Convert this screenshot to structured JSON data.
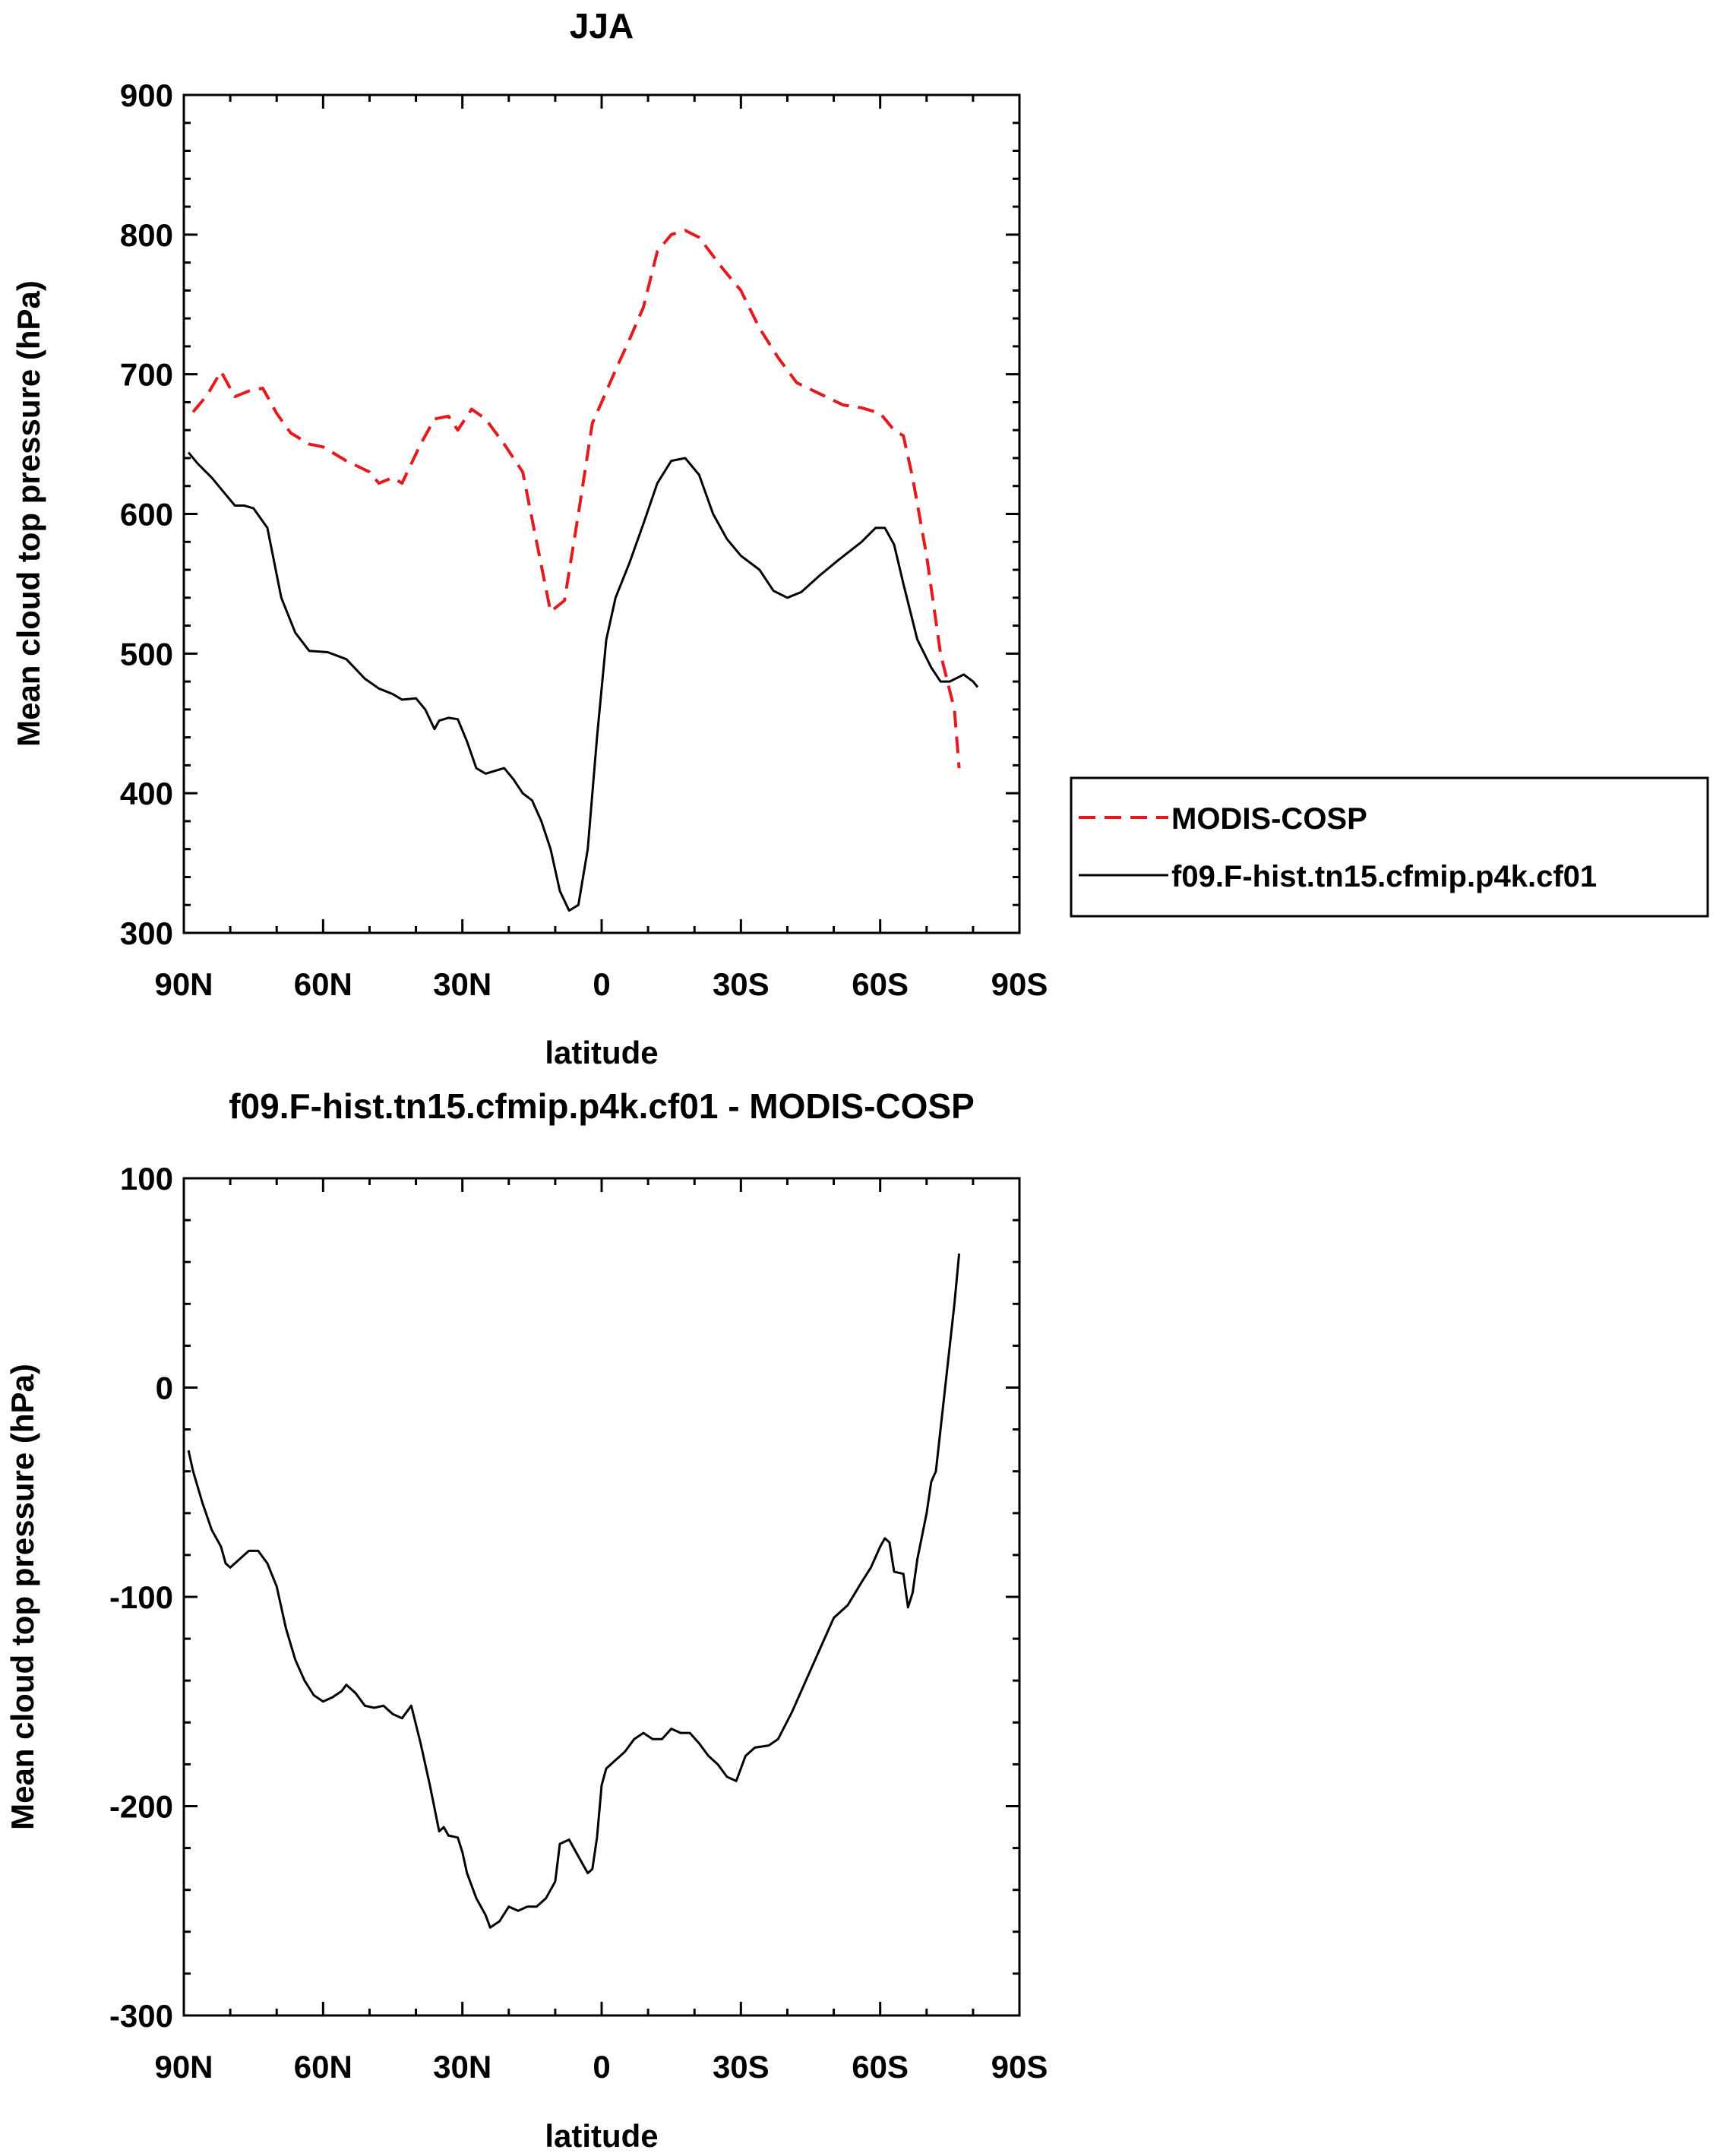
{
  "chart_data": [
    {
      "type": "line",
      "title": "JJA",
      "xlabel": "latitude",
      "ylabel": "Mean cloud top pressure (hPa)",
      "xlim": [
        -90,
        90
      ],
      "ylim": [
        300,
        900
      ],
      "xticks": [
        -90,
        -60,
        -30,
        0,
        30,
        60,
        90
      ],
      "xtick_labels": [
        "90N",
        "60N",
        "30N",
        "0",
        "30S",
        "60S",
        "90S"
      ],
      "yticks": [
        300,
        400,
        500,
        600,
        700,
        800,
        900
      ],
      "ytick_labels": [
        "300",
        "400",
        "500",
        "600",
        "700",
        "800",
        "900"
      ],
      "legend": [
        "MODIS-COSP",
        "f09.F-hist.tn15.cfmip.p4k.cf01"
      ],
      "series": [
        {
          "name": "MODIS-COSP",
          "color": "#e41a1c",
          "dash": "dashed",
          "points": [
            [
              -88,
              673
            ],
            [
              -85,
              685
            ],
            [
              -82,
              702
            ],
            [
              -79,
              684
            ],
            [
              -76,
              688
            ],
            [
              -73,
              690
            ],
            [
              -70,
              672
            ],
            [
              -67,
              658
            ],
            [
              -63,
              650
            ],
            [
              -60,
              648
            ],
            [
              -55,
              638
            ],
            [
              -50,
              630
            ],
            [
              -48,
              622
            ],
            [
              -45,
              626
            ],
            [
              -43,
              622
            ],
            [
              -39,
              650
            ],
            [
              -36,
              668
            ],
            [
              -33,
              670
            ],
            [
              -31,
              660
            ],
            [
              -28,
              675
            ],
            [
              -25,
              668
            ],
            [
              -21,
              650
            ],
            [
              -17,
              630
            ],
            [
              -14,
              580
            ],
            [
              -11,
              530
            ],
            [
              -8,
              538
            ],
            [
              -5,
              600
            ],
            [
              -2,
              665
            ],
            [
              0,
              680
            ],
            [
              3,
              703
            ],
            [
              6,
              725
            ],
            [
              9,
              748
            ],
            [
              12,
              788
            ],
            [
              15,
              800
            ],
            [
              18,
              803
            ],
            [
              21,
              798
            ],
            [
              26,
              776
            ],
            [
              30,
              760
            ],
            [
              34,
              733
            ],
            [
              38,
              712
            ],
            [
              42,
              694
            ],
            [
              47,
              686
            ],
            [
              52,
              678
            ],
            [
              56,
              676
            ],
            [
              60,
              672
            ],
            [
              63,
              660
            ],
            [
              65,
              656
            ],
            [
              67,
              626
            ],
            [
              70,
              570
            ],
            [
              73,
              500
            ],
            [
              76,
              460
            ],
            [
              77,
              418
            ]
          ]
        },
        {
          "name": "f09.F-hist.tn15.cfmip.p4k.cf01",
          "color": "#000000",
          "dash": "solid",
          "points": [
            [
              -89,
              644
            ],
            [
              -87,
              636
            ],
            [
              -84,
              626
            ],
            [
              -81,
              614
            ],
            [
              -79,
              606
            ],
            [
              -77,
              606
            ],
            [
              -75,
              604
            ],
            [
              -72,
              590
            ],
            [
              -69,
              540
            ],
            [
              -66,
              515
            ],
            [
              -63,
              502
            ],
            [
              -59,
              501
            ],
            [
              -55,
              496
            ],
            [
              -51,
              482
            ],
            [
              -48,
              475
            ],
            [
              -45,
              471
            ],
            [
              -43,
              467
            ],
            [
              -40,
              468
            ],
            [
              -38,
              460
            ],
            [
              -36,
              446
            ],
            [
              -35,
              452
            ],
            [
              -33,
              454
            ],
            [
              -31,
              453
            ],
            [
              -29,
              437
            ],
            [
              -27,
              418
            ],
            [
              -25,
              414
            ],
            [
              -21,
              418
            ],
            [
              -19,
              410
            ],
            [
              -17,
              400
            ],
            [
              -15,
              395
            ],
            [
              -13,
              380
            ],
            [
              -11,
              360
            ],
            [
              -9,
              330
            ],
            [
              -7,
              316
            ],
            [
              -5,
              320
            ],
            [
              -3,
              360
            ],
            [
              -1,
              440
            ],
            [
              1,
              510
            ],
            [
              3,
              540
            ],
            [
              6,
              565
            ],
            [
              9,
              593
            ],
            [
              12,
              622
            ],
            [
              15,
              638
            ],
            [
              18,
              640
            ],
            [
              21,
              628
            ],
            [
              24,
              600
            ],
            [
              27,
              582
            ],
            [
              30,
              570
            ],
            [
              34,
              560
            ],
            [
              37,
              545
            ],
            [
              40,
              540
            ],
            [
              43,
              544
            ],
            [
              47,
              556
            ],
            [
              51,
              567
            ],
            [
              56,
              580
            ],
            [
              59,
              590
            ],
            [
              61,
              590
            ],
            [
              63,
              578
            ],
            [
              65,
              550
            ],
            [
              68,
              510
            ],
            [
              71,
              490
            ],
            [
              73,
              480
            ],
            [
              75,
              480
            ],
            [
              78,
              485
            ],
            [
              80,
              480
            ],
            [
              81,
              476
            ]
          ]
        }
      ]
    },
    {
      "type": "line",
      "title": "f09.F-hist.tn15.cfmip.p4k.cf01 - MODIS-COSP",
      "xlabel": "latitude",
      "ylabel": "Mean cloud top pressure (hPa)",
      "xlim": [
        -90,
        90
      ],
      "ylim": [
        -300,
        100
      ],
      "xticks": [
        -90,
        -60,
        -30,
        0,
        30,
        60,
        90
      ],
      "xtick_labels": [
        "90N",
        "60N",
        "30N",
        "0",
        "30S",
        "60S",
        "90S"
      ],
      "yticks": [
        -300,
        -200,
        -100,
        0,
        100
      ],
      "ytick_labels": [
        "-300",
        "-200",
        "-100",
        "0",
        "100"
      ],
      "series": [
        {
          "name": "f09.F-hist.tn15.cfmip.p4k.cf01 - MODIS-COSP",
          "color": "#000000",
          "dash": "solid",
          "points": [
            [
              -89,
              -30
            ],
            [
              -88,
              -40
            ],
            [
              -86,
              -55
            ],
            [
              -84,
              -68
            ],
            [
              -82,
              -76
            ],
            [
              -81,
              -84
            ],
            [
              -80,
              -86
            ],
            [
              -78,
              -82
            ],
            [
              -76,
              -78
            ],
            [
              -74,
              -78
            ],
            [
              -72,
              -84
            ],
            [
              -70,
              -95
            ],
            [
              -68,
              -115
            ],
            [
              -66,
              -130
            ],
            [
              -64,
              -140
            ],
            [
              -62,
              -147
            ],
            [
              -60,
              -150
            ],
            [
              -58,
              -148
            ],
            [
              -56,
              -145
            ],
            [
              -55,
              -142
            ],
            [
              -53,
              -146
            ],
            [
              -51,
              -152
            ],
            [
              -49,
              -153
            ],
            [
              -47,
              -152
            ],
            [
              -45,
              -156
            ],
            [
              -43,
              -158
            ],
            [
              -41,
              -152
            ],
            [
              -39,
              -170
            ],
            [
              -37,
              -190
            ],
            [
              -35,
              -212
            ],
            [
              -34,
              -210
            ],
            [
              -33,
              -214
            ],
            [
              -31,
              -215
            ],
            [
              -30,
              -222
            ],
            [
              -29,
              -232
            ],
            [
              -27,
              -244
            ],
            [
              -25,
              -252
            ],
            [
              -24,
              -258
            ],
            [
              -22,
              -255
            ],
            [
              -20,
              -248
            ],
            [
              -18,
              -250
            ],
            [
              -16,
              -248
            ],
            [
              -14,
              -248
            ],
            [
              -12,
              -244
            ],
            [
              -10,
              -236
            ],
            [
              -9,
              -218
            ],
            [
              -7,
              -216
            ],
            [
              -5,
              -224
            ],
            [
              -3,
              -232
            ],
            [
              -2,
              -230
            ],
            [
              -1,
              -215
            ],
            [
              0,
              -190
            ],
            [
              1,
              -182
            ],
            [
              3,
              -178
            ],
            [
              5,
              -174
            ],
            [
              7,
              -168
            ],
            [
              9,
              -165
            ],
            [
              11,
              -168
            ],
            [
              13,
              -168
            ],
            [
              15,
              -163
            ],
            [
              17,
              -165
            ],
            [
              19,
              -165
            ],
            [
              21,
              -170
            ],
            [
              23,
              -176
            ],
            [
              25,
              -180
            ],
            [
              27,
              -186
            ],
            [
              29,
              -188
            ],
            [
              31,
              -176
            ],
            [
              33,
              -172
            ],
            [
              36,
              -171
            ],
            [
              38,
              -168
            ],
            [
              41,
              -155
            ],
            [
              44,
              -140
            ],
            [
              47,
              -125
            ],
            [
              50,
              -110
            ],
            [
              53,
              -104
            ],
            [
              56,
              -93
            ],
            [
              58,
              -86
            ],
            [
              60,
              -76
            ],
            [
              61,
              -72
            ],
            [
              62,
              -74
            ],
            [
              63,
              -88
            ],
            [
              65,
              -89
            ],
            [
              66,
              -105
            ],
            [
              67,
              -98
            ],
            [
              68,
              -82
            ],
            [
              70,
              -60
            ],
            [
              71,
              -45
            ],
            [
              72,
              -40
            ],
            [
              73,
              -20
            ],
            [
              74,
              0
            ],
            [
              75,
              20
            ],
            [
              76,
              40
            ],
            [
              77,
              64
            ]
          ]
        }
      ]
    }
  ]
}
